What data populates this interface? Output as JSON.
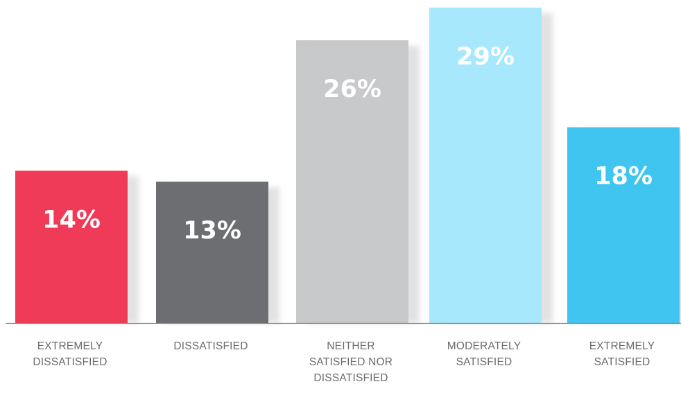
{
  "chart_data": {
    "type": "bar",
    "categories": [
      [
        "EXTREMELY",
        "DISSATISFIED"
      ],
      [
        "DISSATISFIED"
      ],
      [
        "NEITHER",
        "SATISFIED NOR",
        "DISSATISFIED"
      ],
      [
        "MODERATELY",
        "SATISFIED"
      ],
      [
        "EXTREMELY",
        "SATISFIED"
      ]
    ],
    "values": [
      14,
      13,
      26,
      29,
      18
    ],
    "value_labels": [
      "14%",
      "13%",
      "26%",
      "29%",
      "18%"
    ],
    "colors": [
      "#ef3b57",
      "#6d6e71",
      "#c8c9cb",
      "#a8e8fc",
      "#3fc5f0"
    ],
    "ylim": [
      0,
      29
    ],
    "grid": false,
    "legend": "none",
    "shadow_color": "#e2e2e2",
    "axis_color": "#7a7a7a"
  }
}
